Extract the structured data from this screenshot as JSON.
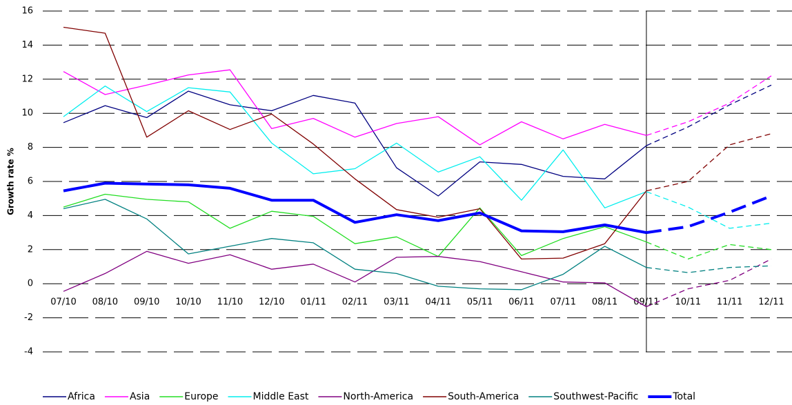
{
  "chart_data": {
    "type": "line",
    "y_label": "Growth rate %",
    "categories": [
      "07/10",
      "08/10",
      "09/10",
      "10/10",
      "11/10",
      "12/10",
      "01/11",
      "02/11",
      "03/11",
      "04/11",
      "05/11",
      "06/11",
      "07/11",
      "08/11",
      "09/11",
      "10/11",
      "11/11",
      "12/11"
    ],
    "forecast_from": 14,
    "ylim": [
      -4,
      16
    ],
    "yticks": [
      -4,
      -2,
      0,
      2,
      4,
      6,
      8,
      10,
      12,
      14,
      16
    ],
    "grid": true,
    "legend": "bottom",
    "series": [
      {
        "name": "Africa",
        "color": "#000080",
        "values": [
          9.45,
          10.45,
          9.75,
          11.3,
          10.5,
          10.15,
          11.05,
          10.6,
          6.8,
          5.15,
          7.15,
          7.0,
          6.3,
          6.15,
          8.1,
          9.2,
          10.5,
          11.65
        ]
      },
      {
        "name": "Asia",
        "color": "#ff00ff",
        "values": [
          12.45,
          11.1,
          11.65,
          12.25,
          12.55,
          9.1,
          9.7,
          8.6,
          9.4,
          9.8,
          8.15,
          9.5,
          8.5,
          9.35,
          8.7,
          9.5,
          10.6,
          12.2
        ]
      },
      {
        "name": "Europe",
        "color": "#22dd22",
        "values": [
          4.5,
          5.25,
          4.95,
          4.8,
          3.25,
          4.25,
          3.95,
          2.35,
          2.75,
          1.6,
          4.45,
          1.65,
          2.65,
          3.35,
          2.45,
          1.45,
          2.3,
          2.0
        ]
      },
      {
        "name": "Middle East",
        "color": "#00eeee",
        "values": [
          9.8,
          11.6,
          10.1,
          11.5,
          11.25,
          8.25,
          6.45,
          6.75,
          8.25,
          6.55,
          7.45,
          4.9,
          7.85,
          4.45,
          5.4,
          4.5,
          3.25,
          3.55
        ]
      },
      {
        "name": "North-America",
        "color": "#800080",
        "values": [
          -0.45,
          0.6,
          1.9,
          1.2,
          1.7,
          0.85,
          1.15,
          0.1,
          1.55,
          1.6,
          1.3,
          0.7,
          0.1,
          0.05,
          -1.35,
          -0.3,
          0.2,
          1.45
        ]
      },
      {
        "name": "South-America",
        "color": "#800000",
        "values": [
          15.05,
          14.7,
          8.6,
          10.15,
          9.05,
          9.95,
          8.2,
          6.15,
          4.35,
          3.9,
          4.4,
          1.45,
          1.5,
          2.35,
          5.45,
          6.0,
          8.15,
          8.8
        ]
      },
      {
        "name": "Southwest-Pacific",
        "color": "#008080",
        "values": [
          4.4,
          4.95,
          3.8,
          1.75,
          2.2,
          2.65,
          2.4,
          0.85,
          0.6,
          -0.15,
          -0.3,
          -0.35,
          0.55,
          2.2,
          0.95,
          0.65,
          0.95,
          1.05
        ]
      },
      {
        "name": "Total",
        "color": "#0000ff",
        "width": 4,
        "values": [
          5.45,
          5.9,
          5.85,
          5.8,
          5.6,
          4.9,
          4.9,
          3.6,
          4.05,
          3.7,
          4.15,
          3.1,
          3.05,
          3.45,
          3.0,
          3.35,
          4.2,
          5.15
        ]
      }
    ]
  }
}
